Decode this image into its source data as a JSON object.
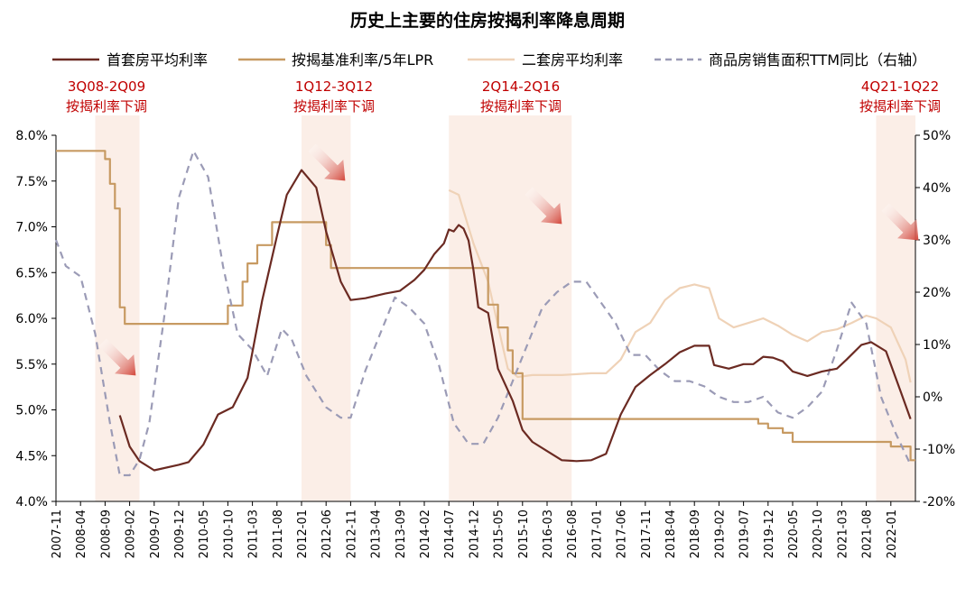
{
  "chart_data": {
    "type": "line",
    "title": "历史上主要的住房按揭利率降息周期",
    "colors": {
      "first_home": "#6b2a22",
      "benchmark": "#c79a62",
      "second_home": "#efd2b7",
      "sales": "#9b9bb6",
      "shade": "#fbeee7",
      "red_text": "#c00000",
      "arrow": "#d2463a"
    },
    "x_tick_labels": [
      "2007-11",
      "2008-04",
      "2008-09",
      "2009-02",
      "2009-07",
      "2009-12",
      "2010-05",
      "2010-10",
      "2011-03",
      "2011-08",
      "2012-01",
      "2012-06",
      "2012-11",
      "2013-04",
      "2013-09",
      "2014-02",
      "2014-07",
      "2014-12",
      "2015-05",
      "2015-10",
      "2016-03",
      "2016-08",
      "2017-01",
      "2017-06",
      "2017-11",
      "2018-04",
      "2018-09",
      "2019-02",
      "2019-07",
      "2019-12",
      "2020-05",
      "2020-10",
      "2021-03",
      "2021-08",
      "2022-01"
    ],
    "y_left": {
      "min": 4.0,
      "max": 8.0,
      "step": 0.5,
      "tick_labels": [
        "4.0%",
        "4.5%",
        "5.0%",
        "5.5%",
        "6.0%",
        "6.5%",
        "7.0%",
        "7.5%",
        "8.0%"
      ]
    },
    "y_right": {
      "min": -20,
      "max": 50,
      "step": 10,
      "tick_labels": [
        "-20%",
        "-10%",
        "0%",
        "10%",
        "20%",
        "30%",
        "40%",
        "50%"
      ]
    },
    "periods": [
      {
        "line1": "3Q08-2Q09",
        "line2": "按揭利率下调",
        "start": "2008-07",
        "end": "2009-04"
      },
      {
        "line1": "1Q12-3Q12",
        "line2": "按揭利率下调",
        "start": "2012-01",
        "end": "2012-11"
      },
      {
        "line1": "2Q14-2Q16",
        "line2": "按揭利率下调",
        "start": "2014-07",
        "end": "2016-08"
      },
      {
        "line1": "4Q21-1Q22",
        "line2": "按揭利率下调",
        "start": "2021-10",
        "end": "2022-06"
      }
    ],
    "series": [
      {
        "name": "首套房平均利率",
        "axis": "left",
        "style": "solid",
        "points": [
          [
            "2008-12",
            4.94
          ],
          [
            "2009-02",
            4.6
          ],
          [
            "2009-04",
            4.44
          ],
          [
            "2009-07",
            4.34
          ],
          [
            "2009-12",
            4.4
          ],
          [
            "2010-02",
            4.43
          ],
          [
            "2010-05",
            4.62
          ],
          [
            "2010-08",
            4.95
          ],
          [
            "2010-11",
            5.03
          ],
          [
            "2011-02",
            5.35
          ],
          [
            "2011-05",
            6.2
          ],
          [
            "2011-08",
            6.9
          ],
          [
            "2011-10",
            7.35
          ],
          [
            "2012-01",
            7.62
          ],
          [
            "2012-04",
            7.43
          ],
          [
            "2012-06",
            6.95
          ],
          [
            "2012-09",
            6.4
          ],
          [
            "2012-11",
            6.2
          ],
          [
            "2013-02",
            6.22
          ],
          [
            "2013-06",
            6.27
          ],
          [
            "2013-09",
            6.3
          ],
          [
            "2013-12",
            6.42
          ],
          [
            "2014-02",
            6.53
          ],
          [
            "2014-04",
            6.7
          ],
          [
            "2014-06",
            6.82
          ],
          [
            "2014-07",
            6.97
          ],
          [
            "2014-08",
            6.95
          ],
          [
            "2014-09",
            7.02
          ],
          [
            "2014-10",
            6.98
          ],
          [
            "2014-11",
            6.85
          ],
          [
            "2014-12",
            6.53
          ],
          [
            "2015-01",
            6.12
          ],
          [
            "2015-03",
            6.06
          ],
          [
            "2015-04",
            5.75
          ],
          [
            "2015-05",
            5.45
          ],
          [
            "2015-08",
            5.1
          ],
          [
            "2015-10",
            4.78
          ],
          [
            "2015-12",
            4.65
          ],
          [
            "2016-03",
            4.55
          ],
          [
            "2016-06",
            4.45
          ],
          [
            "2016-09",
            4.44
          ],
          [
            "2016-12",
            4.45
          ],
          [
            "2017-03",
            4.52
          ],
          [
            "2017-06",
            4.95
          ],
          [
            "2017-09",
            5.25
          ],
          [
            "2017-12",
            5.38
          ],
          [
            "2018-03",
            5.5
          ],
          [
            "2018-06",
            5.63
          ],
          [
            "2018-09",
            5.7
          ],
          [
            "2018-12",
            5.7
          ],
          [
            "2019-01",
            5.49
          ],
          [
            "2019-04",
            5.45
          ],
          [
            "2019-07",
            5.5
          ],
          [
            "2019-09",
            5.5
          ],
          [
            "2019-11",
            5.58
          ],
          [
            "2020-01",
            5.57
          ],
          [
            "2020-03",
            5.53
          ],
          [
            "2020-05",
            5.42
          ],
          [
            "2020-08",
            5.37
          ],
          [
            "2020-11",
            5.42
          ],
          [
            "2021-02",
            5.45
          ],
          [
            "2021-04",
            5.55
          ],
          [
            "2021-07",
            5.71
          ],
          [
            "2021-09",
            5.74
          ],
          [
            "2021-12",
            5.64
          ],
          [
            "2022-03",
            5.2
          ],
          [
            "2022-05",
            4.9
          ]
        ]
      },
      {
        "name": "按揭基准利率/5年LPR",
        "axis": "left",
        "style": "step",
        "points": [
          [
            "2007-11",
            7.83
          ],
          [
            "2008-09",
            7.74
          ],
          [
            "2008-10",
            7.47
          ],
          [
            "2008-11",
            7.2
          ],
          [
            "2008-12",
            6.12
          ],
          [
            "2009-01",
            5.94
          ],
          [
            "2010-10",
            6.14
          ],
          [
            "2011-01",
            6.4
          ],
          [
            "2011-02",
            6.6
          ],
          [
            "2011-04",
            6.8
          ],
          [
            "2011-07",
            7.05
          ],
          [
            "2012-06",
            6.8
          ],
          [
            "2012-07",
            6.55
          ],
          [
            "2015-03",
            6.15
          ],
          [
            "2015-05",
            5.9
          ],
          [
            "2015-07",
            5.65
          ],
          [
            "2015-08",
            5.4
          ],
          [
            "2015-10",
            4.9
          ],
          [
            "2019-10",
            4.85
          ],
          [
            "2019-12",
            4.8
          ],
          [
            "2020-03",
            4.75
          ],
          [
            "2020-05",
            4.65
          ],
          [
            "2022-01",
            4.6
          ],
          [
            "2022-05",
            4.45
          ]
        ]
      },
      {
        "name": "二套房平均利率",
        "axis": "left",
        "style": "solid",
        "points": [
          [
            "2014-07",
            7.4
          ],
          [
            "2014-09",
            7.35
          ],
          [
            "2014-12",
            6.82
          ],
          [
            "2015-03",
            6.4
          ],
          [
            "2015-05",
            5.92
          ],
          [
            "2015-07",
            5.45
          ],
          [
            "2015-09",
            5.36
          ],
          [
            "2015-12",
            5.38
          ],
          [
            "2016-06",
            5.38
          ],
          [
            "2016-12",
            5.4
          ],
          [
            "2017-03",
            5.4
          ],
          [
            "2017-06",
            5.55
          ],
          [
            "2017-09",
            5.85
          ],
          [
            "2017-12",
            5.95
          ],
          [
            "2018-03",
            6.2
          ],
          [
            "2018-06",
            6.33
          ],
          [
            "2018-09",
            6.37
          ],
          [
            "2018-12",
            6.33
          ],
          [
            "2019-02",
            6.0
          ],
          [
            "2019-05",
            5.9
          ],
          [
            "2019-08",
            5.95
          ],
          [
            "2019-11",
            6.0
          ],
          [
            "2020-02",
            5.92
          ],
          [
            "2020-05",
            5.82
          ],
          [
            "2020-08",
            5.75
          ],
          [
            "2020-11",
            5.85
          ],
          [
            "2021-02",
            5.88
          ],
          [
            "2021-05",
            5.95
          ],
          [
            "2021-08",
            6.03
          ],
          [
            "2021-10",
            6.0
          ],
          [
            "2022-01",
            5.9
          ],
          [
            "2022-04",
            5.55
          ],
          [
            "2022-05",
            5.3
          ]
        ]
      },
      {
        "name": "商品房销售面积TTM同比（右轴）",
        "axis": "right",
        "style": "dashed",
        "points": [
          [
            "2007-11",
            30
          ],
          [
            "2008-01",
            25
          ],
          [
            "2008-04",
            23
          ],
          [
            "2008-07",
            12
          ],
          [
            "2008-10",
            -5
          ],
          [
            "2008-12",
            -15
          ],
          [
            "2009-02",
            -15
          ],
          [
            "2009-04",
            -12
          ],
          [
            "2009-06",
            -5
          ],
          [
            "2009-09",
            15
          ],
          [
            "2009-12",
            38
          ],
          [
            "2010-03",
            47
          ],
          [
            "2010-06",
            42
          ],
          [
            "2010-09",
            25
          ],
          [
            "2010-12",
            12
          ],
          [
            "2011-03",
            9
          ],
          [
            "2011-06",
            4
          ],
          [
            "2011-09",
            13
          ],
          [
            "2011-11",
            11
          ],
          [
            "2012-02",
            4
          ],
          [
            "2012-06",
            -2
          ],
          [
            "2012-09",
            -4
          ],
          [
            "2012-11",
            -4
          ],
          [
            "2013-02",
            5
          ],
          [
            "2013-05",
            12
          ],
          [
            "2013-08",
            19
          ],
          [
            "2013-11",
            17
          ],
          [
            "2014-02",
            14
          ],
          [
            "2014-05",
            6
          ],
          [
            "2014-08",
            -5
          ],
          [
            "2014-11",
            -9
          ],
          [
            "2015-02",
            -9
          ],
          [
            "2015-05",
            -4
          ],
          [
            "2015-08",
            3
          ],
          [
            "2015-11",
            10
          ],
          [
            "2016-02",
            17
          ],
          [
            "2016-05",
            20
          ],
          [
            "2016-08",
            22
          ],
          [
            "2016-11",
            22
          ],
          [
            "2017-02",
            18
          ],
          [
            "2017-05",
            14
          ],
          [
            "2017-08",
            8
          ],
          [
            "2017-11",
            8
          ],
          [
            "2018-02",
            5
          ],
          [
            "2018-05",
            3
          ],
          [
            "2018-08",
            3
          ],
          [
            "2018-11",
            2
          ],
          [
            "2019-02",
            0
          ],
          [
            "2019-05",
            -1
          ],
          [
            "2019-08",
            -1
          ],
          [
            "2019-11",
            0
          ],
          [
            "2020-02",
            -3
          ],
          [
            "2020-05",
            -4
          ],
          [
            "2020-08",
            -2
          ],
          [
            "2020-11",
            1
          ],
          [
            "2021-02",
            9
          ],
          [
            "2021-05",
            18
          ],
          [
            "2021-08",
            14
          ],
          [
            "2021-11",
            0
          ],
          [
            "2022-02",
            -7
          ],
          [
            "2022-05",
            -13
          ]
        ]
      }
    ]
  }
}
